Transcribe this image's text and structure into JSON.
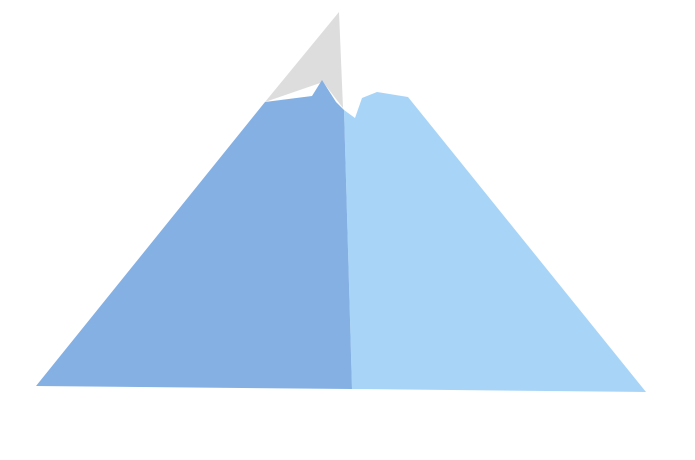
{
  "illustration": {
    "subject": "mountain-icon",
    "colors": {
      "background": "#ffffff",
      "snow_cap": "#dddddd",
      "left_face": "#84b0e4",
      "right_face": "#a8d5f7"
    }
  }
}
